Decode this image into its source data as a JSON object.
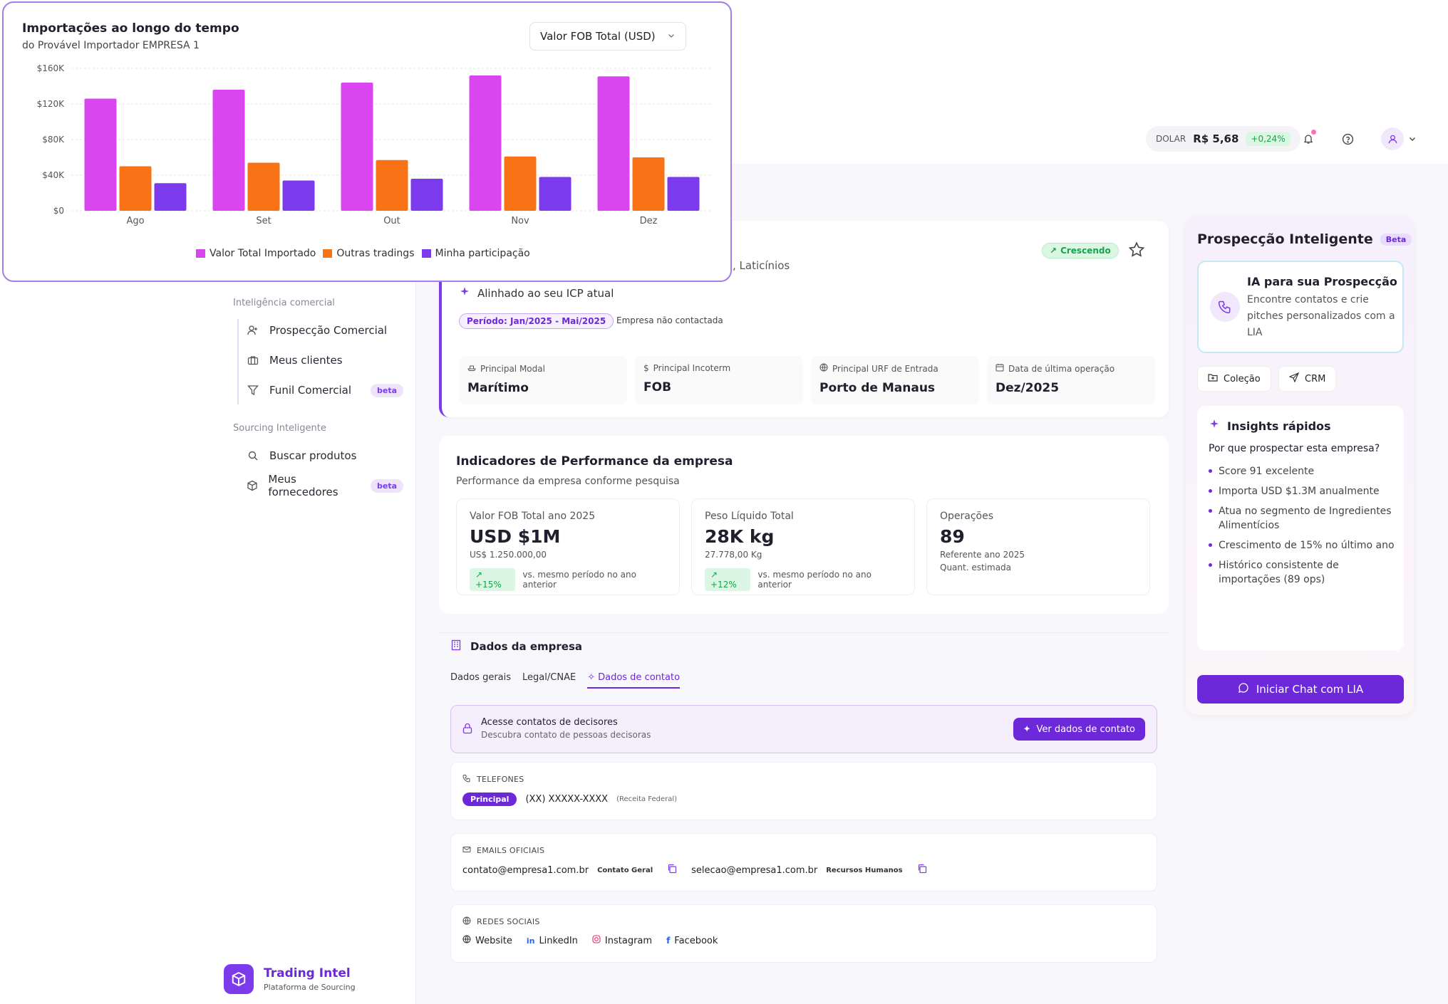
{
  "topbar": {
    "dolar_label": "DOLAR",
    "dolar_value": "R$ 5,68",
    "dolar_change": "+0,24%"
  },
  "sidebar": {
    "section_comercial": "Inteligência comercial",
    "comercial_items": [
      {
        "label": "Prospecção Comercial",
        "icon": "user-plus-icon"
      },
      {
        "label": "Meus clientes",
        "icon": "briefcase-icon"
      },
      {
        "label": "Funil Comercial",
        "icon": "filter-icon",
        "badge": "beta"
      }
    ],
    "section_sourcing": "Sourcing Inteligente",
    "sourcing_items": [
      {
        "label": "Buscar produtos",
        "icon": "search-icon"
      },
      {
        "label": "Meus fornecedores",
        "icon": "box-icon",
        "badge": "beta"
      }
    ],
    "brand_name": "Trading Intel",
    "brand_sub": "Plataforma de Sourcing"
  },
  "company": {
    "status_badge": "Crescendo",
    "segment_text": ", Laticínios",
    "icp_text": "Alinhado ao seu ICP atual",
    "period": "Período: Jan/2025 - Mai/2025",
    "contact_status": "Empresa não contactada",
    "facts": [
      {
        "label": "Principal Modal",
        "value": "Marítimo",
        "icon": "ship-icon"
      },
      {
        "label": "Principal Incoterm",
        "value": "FOB",
        "icon": "dollar-icon"
      },
      {
        "label": "Principal URF de Entrada",
        "value": "Porto de Manaus",
        "icon": "globe-icon"
      },
      {
        "label": "Data de última operação",
        "value": "Dez/2025",
        "icon": "calendar-icon"
      }
    ]
  },
  "performance": {
    "title": "Indicadores de Performance da empresa",
    "subtitle": "Performance da empresa conforme pesquisa",
    "metrics": [
      {
        "label": "Valor FOB Total ano 2025",
        "value": "USD $1M",
        "sub": "US$ 1.250.000,00",
        "change": "+15%",
        "compare": "vs. mesmo período no ano anterior"
      },
      {
        "label": "Peso Líquido Total",
        "value": "28K kg",
        "sub": "27.778,00 Kg",
        "change": "+12%",
        "compare": "vs. mesmo período no ano anterior"
      },
      {
        "label": "Operações",
        "value": "89",
        "sub": "Referente ano 2025",
        "sub2": "Quant. estimada"
      }
    ]
  },
  "company_data": {
    "title": "Dados da empresa",
    "tabs": [
      "Dados gerais",
      "Legal/CNAE",
      "Dados de contato"
    ],
    "access_title": "Acesse contatos de decisores",
    "access_sub": "Descubra contato de pessoas decisoras",
    "access_button": "Ver dados de contato",
    "phones_label": "TELEFONES",
    "phone_badge": "Principal",
    "phone_value": "(XX) XXXXX-XXXX",
    "phone_source": "(Receita Federal)",
    "emails_label": "EMAILS OFICIAIS",
    "email1": "contato@empresa1.com.br",
    "email1_tag": "Contato Geral",
    "email2": "selecao@empresa1.com.br",
    "email2_tag": "Recursos Humanos",
    "social_label": "REDES SOCIAIS",
    "socials": [
      "Website",
      "LinkedIn",
      "Instagram",
      "Facebook"
    ]
  },
  "right_panel": {
    "title": "Prospecção Inteligente",
    "beta": "Beta",
    "ia_title": "IA para sua Prospecção",
    "ia_text": "Encontre contatos e crie pitches personalizados com a LIA",
    "btn_colecao": "Coleção",
    "btn_crm": "CRM",
    "insights_title": "Insights rápidos",
    "insights_question": "Por que prospectar esta empresa?",
    "insights": [
      "Score 91 excelente",
      "Importa USD $1.3M anualmente",
      "Atua no segmento de Ingredientes Alimentícios",
      "Crescimento de 15% no último ano",
      "Histórico consistente de importações (89 ops)"
    ],
    "chat_button": "Iniciar Chat com LIA"
  },
  "chart_card": {
    "title": "Importações ao longo do tempo",
    "subtitle": "do Provável Importador EMPRESA 1",
    "select_value": "Valor FOB Total (USD)"
  },
  "chart_data": {
    "type": "bar",
    "categories": [
      "Ago",
      "Set",
      "Out",
      "Nov",
      "Dez"
    ],
    "series": [
      {
        "name": "Valor Total Importado",
        "color": "#d946ef",
        "values": [
          126000,
          136000,
          144000,
          152000,
          151000
        ]
      },
      {
        "name": "Outras tradings",
        "color": "#f97316",
        "values": [
          50000,
          54000,
          57000,
          61000,
          60000
        ]
      },
      {
        "name": "Minha participação",
        "color": "#7c3aed",
        "values": [
          31000,
          34000,
          36000,
          38000,
          38000
        ]
      }
    ],
    "yticks": [
      "$0",
      "$40K",
      "$80K",
      "$120K",
      "$160K"
    ],
    "ylim": [
      0,
      160000
    ],
    "grid": true,
    "legend": "bottom"
  }
}
